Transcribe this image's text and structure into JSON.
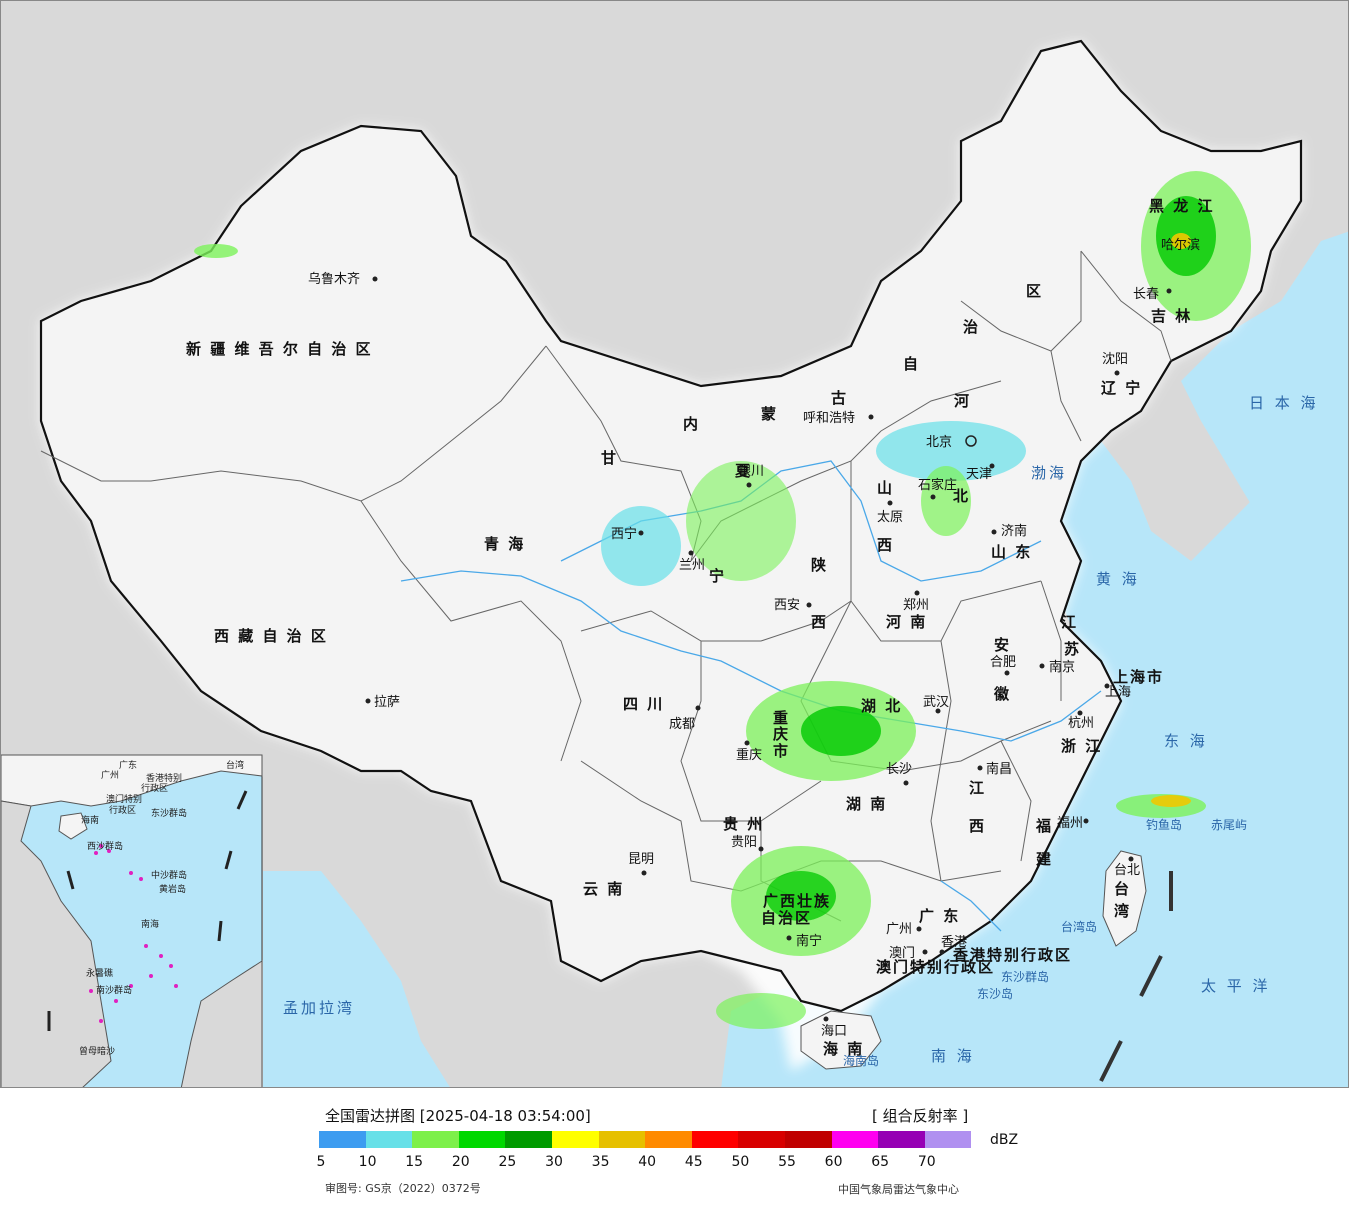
{
  "colors": {
    "sea": "#b7e6f9",
    "land": "#f4f4f4",
    "foreign_land": "#d9d9d9",
    "border": "#111111",
    "rain_light": "#7cf25a",
    "rain_med": "#00c800",
    "rain_heavy": "#f0c800"
  },
  "legend": {
    "title": "全国雷达拼图 [2025-04-18 03:54:00]",
    "product": "[ 组合反射率 ]",
    "unit": "dBZ",
    "colors": [
      "#3d9cf0",
      "#67e0e8",
      "#7df04a",
      "#00d800",
      "#009a00",
      "#ffff00",
      "#e6c000",
      "#ff8a00",
      "#ff0000",
      "#d80000",
      "#c00000",
      "#ff00f0",
      "#9600b4",
      "#b090f0"
    ],
    "ticks": [
      "5",
      "10",
      "15",
      "20",
      "25",
      "30",
      "35",
      "40",
      "45",
      "50",
      "55",
      "60",
      "65",
      "70"
    ],
    "approval": "审图号: GS京（2022）0372号",
    "source": "中国气象局雷达气象中心"
  },
  "provinces": [
    {
      "name": "新疆维吾尔自治区",
      "label": "新 疆 维 吾 尔 自 治 区"
    },
    {
      "name": "西藏自治区",
      "label": "西 藏 自 治 区"
    },
    {
      "name": "青海",
      "label": "青    海"
    },
    {
      "name": "甘",
      "label": "甘"
    },
    {
      "name": "内",
      "label": "内"
    },
    {
      "name": "蒙",
      "label": "蒙"
    },
    {
      "name": "古",
      "label": "古"
    },
    {
      "name": "自",
      "label": "自"
    },
    {
      "name": "治",
      "label": "治"
    },
    {
      "name": "区",
      "label": "区"
    },
    {
      "name": "黑龙江",
      "label": "黑  龙  江"
    },
    {
      "name": "吉林",
      "label": "吉   林"
    },
    {
      "name": "辽宁",
      "label": "辽 宁"
    },
    {
      "name": "河",
      "label": "河"
    },
    {
      "name": "北",
      "label": "北"
    },
    {
      "name": "山",
      "label": "山"
    },
    {
      "name": "西",
      "label": "西"
    },
    {
      "name": "山东",
      "label": "山 东"
    },
    {
      "name": "河南",
      "label": "河    南"
    },
    {
      "name": "陕",
      "label": "陕"
    },
    {
      "name": "西2",
      "label": "西"
    },
    {
      "name": "江",
      "label": "江"
    },
    {
      "name": "苏",
      "label": "苏"
    },
    {
      "name": "安",
      "label": "安"
    },
    {
      "name": "徽",
      "label": "徽"
    },
    {
      "name": "四川",
      "label": "四    川"
    },
    {
      "name": "湖北",
      "label": "湖    北"
    },
    {
      "name": "湖南",
      "label": "湖    南"
    },
    {
      "name": "江西",
      "label": "江"
    },
    {
      "name": "西3",
      "label": "西"
    },
    {
      "name": "浙江",
      "label": "浙 江"
    },
    {
      "name": "福建",
      "label": "福"
    },
    {
      "name": "建",
      "label": "建"
    },
    {
      "name": "贵州",
      "label": "贵 州"
    },
    {
      "name": "云南",
      "label": "云    南"
    },
    {
      "name": "广西壮族自治区",
      "label": "广西壮族"
    },
    {
      "name": "自治区",
      "label": "自治区"
    },
    {
      "name": "广东",
      "label": "广   东"
    },
    {
      "name": "海南",
      "label": "海  南"
    },
    {
      "name": "台湾",
      "label": "台"
    },
    {
      "name": "湾",
      "label": "湾"
    },
    {
      "name": "重庆市",
      "label": "重"
    },
    {
      "name": "庆",
      "label": "庆"
    },
    {
      "name": "市",
      "label": "市"
    },
    {
      "name": "宁",
      "label": "宁"
    },
    {
      "name": "夏",
      "label": "夏"
    },
    {
      "name": "上海市",
      "label": "上海市"
    },
    {
      "name": "香港特别行政区",
      "label": "香港特别行政区"
    },
    {
      "name": "澳门特别行政区",
      "label": "澳门特别行政区"
    }
  ],
  "cities": [
    {
      "name": "乌鲁木齐"
    },
    {
      "name": "拉萨"
    },
    {
      "name": "西宁"
    },
    {
      "name": "兰州"
    },
    {
      "name": "银川"
    },
    {
      "name": "呼和浩特"
    },
    {
      "name": "北京"
    },
    {
      "name": "天津"
    },
    {
      "name": "石家庄"
    },
    {
      "name": "太原"
    },
    {
      "name": "济南"
    },
    {
      "name": "郑州"
    },
    {
      "name": "西安"
    },
    {
      "name": "成都"
    },
    {
      "name": "重庆"
    },
    {
      "name": "武汉"
    },
    {
      "name": "合肥"
    },
    {
      "name": "南京"
    },
    {
      "name": "上海"
    },
    {
      "name": "杭州"
    },
    {
      "name": "南昌"
    },
    {
      "name": "长沙"
    },
    {
      "name": "福州"
    },
    {
      "name": "台北"
    },
    {
      "name": "贵阳"
    },
    {
      "name": "昆明"
    },
    {
      "name": "南宁"
    },
    {
      "name": "广州"
    },
    {
      "name": "澳门"
    },
    {
      "name": "香港"
    },
    {
      "name": "海口"
    },
    {
      "name": "哈尔滨"
    },
    {
      "name": "长春"
    },
    {
      "name": "沈阳"
    },
    {
      "name": "台湾岛"
    },
    {
      "name": "钓鱼岛"
    },
    {
      "name": "赤尾屿"
    },
    {
      "name": "东沙群岛"
    },
    {
      "name": "东沙岛"
    },
    {
      "name": "海南岛"
    }
  ],
  "seas": [
    {
      "name": "日本海",
      "label": "日 本 海"
    },
    {
      "name": "渤海",
      "label": "渤海"
    },
    {
      "name": "黄海",
      "label": "黄 海"
    },
    {
      "name": "东海",
      "label": "东 海"
    },
    {
      "name": "太平洋",
      "label": "太 平 洋"
    },
    {
      "name": "南海",
      "label": "南    海"
    },
    {
      "name": "孟加拉湾",
      "label": "孟加拉湾"
    }
  ],
  "inset": {
    "labels": [
      "广东",
      "广州",
      "香港特别",
      "行政区",
      "澳门特别",
      "行政区",
      "台湾",
      "东沙群岛",
      "海南",
      "西沙群岛",
      "中沙群岛",
      "南海",
      "南沙群岛",
      "曾母暗沙",
      "永暑礁",
      "黄岩岛"
    ]
  }
}
